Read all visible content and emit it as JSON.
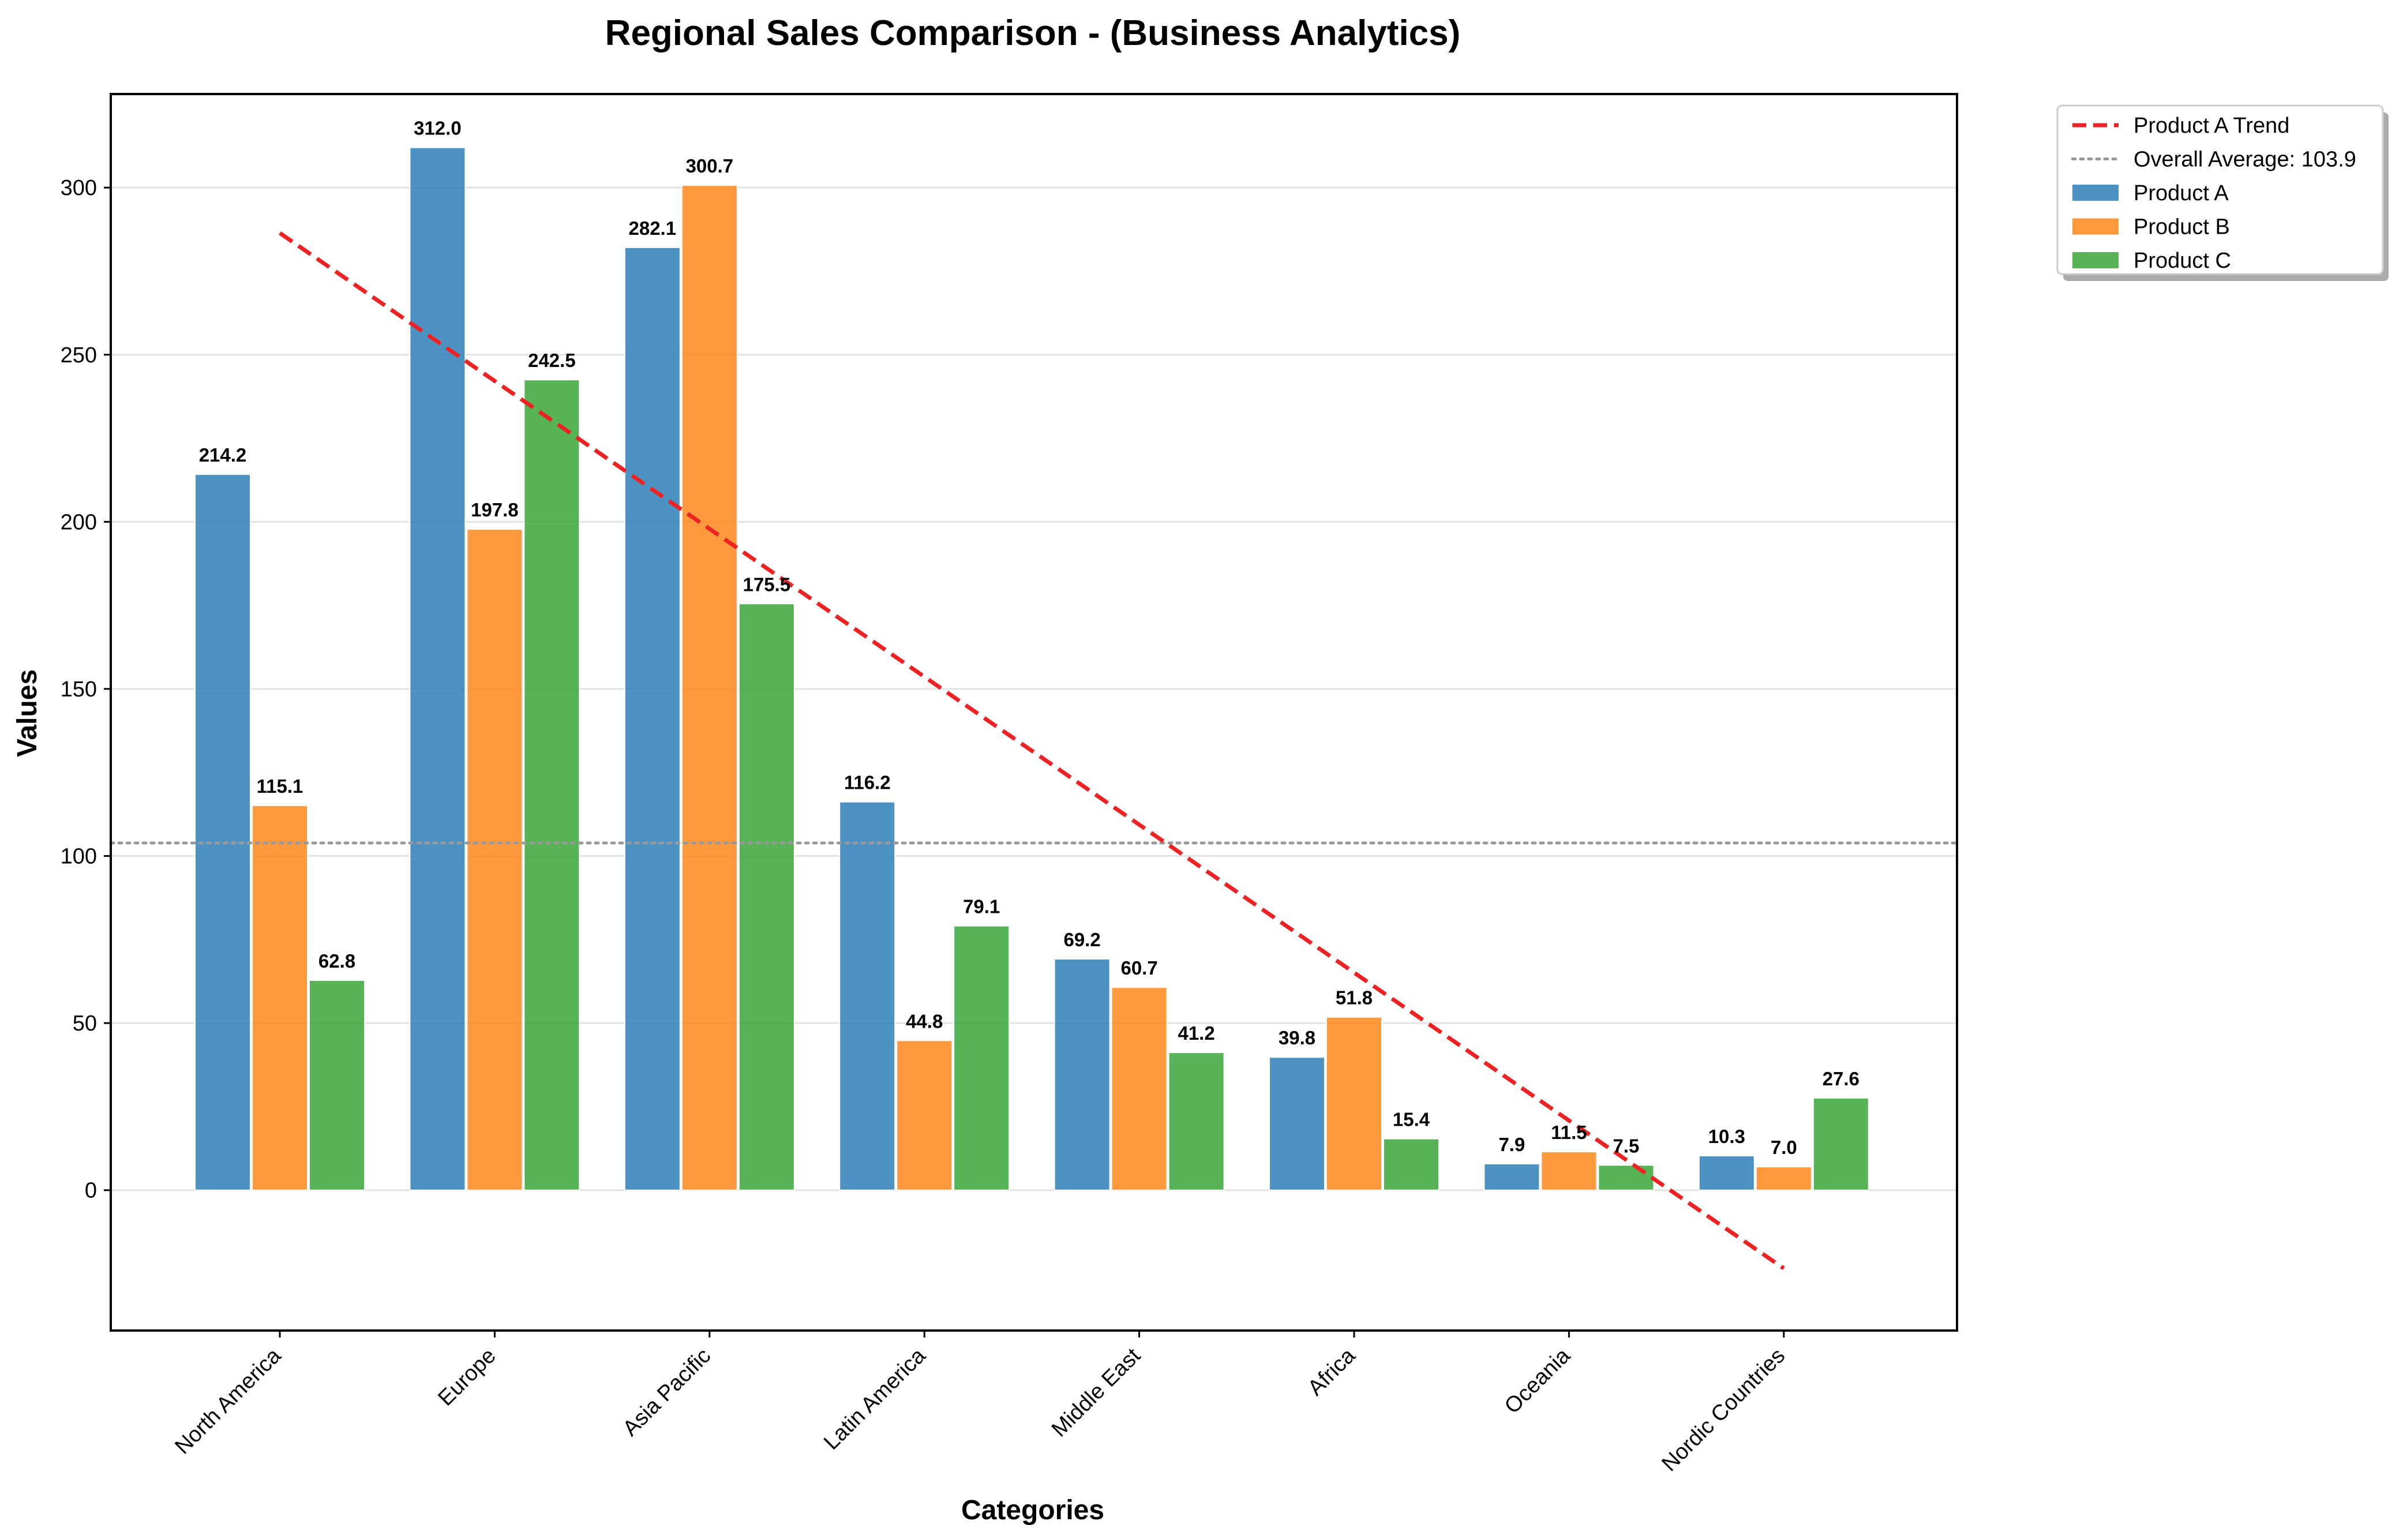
{
  "chart_data": {
    "type": "bar",
    "title": "Regional Sales Comparison - (Business Analytics)",
    "xlabel": "Categories",
    "ylabel": "Values",
    "categories": [
      "North America",
      "Europe",
      "Asia Pacific",
      "Latin America",
      "Middle East",
      "Africa",
      "Oceania",
      "Nordic Countries"
    ],
    "series": [
      {
        "name": "Product A",
        "color": "#1f77b4",
        "values": [
          214.2,
          312.0,
          282.1,
          116.2,
          69.2,
          39.8,
          7.9,
          10.3
        ],
        "labels": [
          "214.2",
          "312.0",
          "282.1",
          "116.2",
          "69.2",
          "39.8",
          "7.9",
          "10.3"
        ]
      },
      {
        "name": "Product B",
        "color": "#ff7f0e",
        "values": [
          115.1,
          197.8,
          300.7,
          44.8,
          60.7,
          51.8,
          11.5,
          7.0
        ],
        "labels": [
          "115.1",
          "197.8",
          "300.7",
          "44.8",
          "60.7",
          "51.8",
          "11.5",
          "7.0"
        ]
      },
      {
        "name": "Product C",
        "color": "#2ca02c",
        "values": [
          62.8,
          242.5,
          175.5,
          79.1,
          41.2,
          15.4,
          7.5,
          27.6
        ],
        "labels": [
          "62.8",
          "242.5",
          "175.5",
          "79.1",
          "41.2",
          "15.4",
          "7.5",
          "27.6"
        ]
      }
    ],
    "trend": {
      "name": "Product A Trend",
      "color": "#ee2222",
      "style": "dashed",
      "start": 286.4,
      "end": -23.4
    },
    "average": {
      "name": "Overall Average: 103.9",
      "value": 103.9,
      "color": "#999999",
      "style": "dotted"
    },
    "yticks": [
      0,
      50,
      100,
      150,
      200,
      250,
      300
    ],
    "ytick_labels": [
      "0",
      "50",
      "100",
      "150",
      "200",
      "250",
      "300"
    ],
    "ylim": [
      -42,
      328
    ],
    "grid": "horizontal",
    "legend_position": "outside-top-right"
  }
}
